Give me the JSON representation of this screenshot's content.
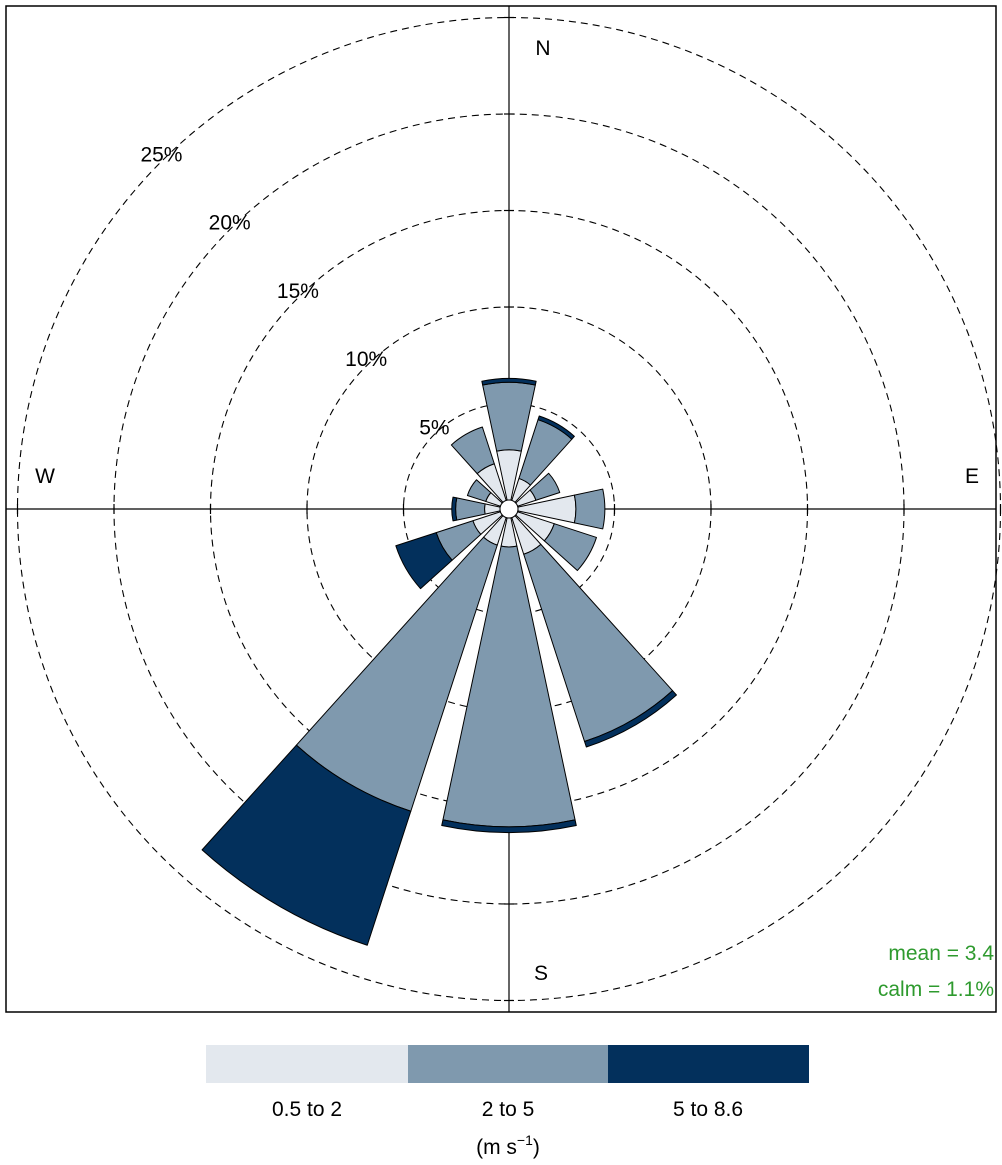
{
  "chart_data": {
    "type": "windrose",
    "directions": [
      0,
      30,
      60,
      90,
      120,
      150,
      180,
      210,
      240,
      270,
      300,
      330
    ],
    "compass": {
      "n": "N",
      "e": "E",
      "s": "S",
      "w": "W"
    },
    "radial_axis": {
      "max": 28,
      "rings": [
        5,
        10,
        15,
        20,
        25
      ],
      "ring_labels": [
        "5%",
        "10%",
        "15%",
        "20%",
        "25%"
      ]
    },
    "series": [
      {
        "name": "0.5 to 2",
        "color": "#e3e8ee",
        "values": [
          2.6,
          1.2,
          1.0,
          3.0,
          2.0,
          2.0,
          1.5,
          1.5,
          1.5,
          0.8,
          0.8,
          2.0
        ]
      },
      {
        "name": "2 to 5",
        "color": "#7f99ae",
        "values": [
          3.5,
          3.2,
          1.3,
          1.5,
          2.3,
          10.2,
          14.5,
          14.5,
          2.0,
          1.5,
          1.0,
          2.0
        ]
      },
      {
        "name": "5 to 8.6",
        "color": "#03305c",
        "values": [
          0.2,
          0.2,
          0.0,
          0.0,
          0.0,
          0.3,
          0.3,
          7.3,
          2.2,
          0.2,
          0.0,
          0.0
        ]
      }
    ],
    "legend": {
      "position": "bottom",
      "labels": [
        "0.5 to 2",
        "2 to 5",
        "5 to 8.6"
      ],
      "unit_prefix": "(m s",
      "unit_exponent": "−1",
      "unit_suffix": ")"
    },
    "stats": {
      "mean": "mean = 3.4",
      "calm": "calm = 1.1%"
    }
  }
}
